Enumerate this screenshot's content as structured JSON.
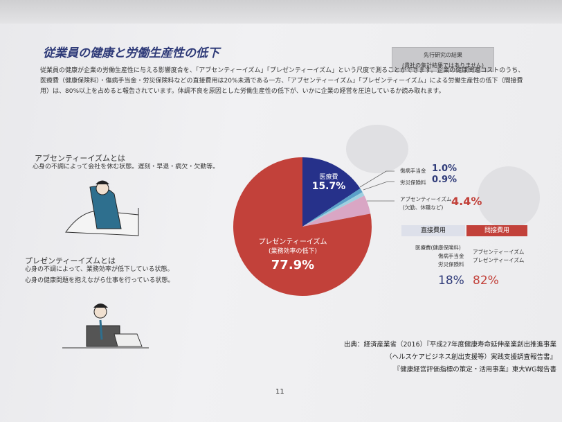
{
  "page_title": "従業員の健康と労働生産性の低下",
  "note": {
    "line1": "先行研究の結果",
    "line2": "(貴社の集計結果ではありません)"
  },
  "intro": "従業員の健康が企業の労働生産性に与える影響度合を、「アブセンティーイズム」「プレゼンティーイズム」という尺度で測ることができます。企業の健康関連コストのうち、医療費（健康保険料）・傷病手当金・労災保険料などの直接費用は20%未満である一方、「アブセンティーイズム」「プレゼンティーイズム」による労働生産性の低下（間接費用）は、80%以上を占めると報告されています。体調不良を原因とした労働生産性の低下が、いかに企業の経営を圧迫しているか読み取れます。",
  "absenteeism": {
    "heading": "アブセンティーイズムとは",
    "desc": "心身の不調によって会社を休む状態。遅刻・早退・病欠・欠勤等。"
  },
  "presenteeism": {
    "heading": "プレゼンティーイズムとは",
    "desc1": "心身の不調によって、業務効率が低下している状態。",
    "desc2": "心身の健康問題を抱えながら仕事を行っている状態。"
  },
  "chart_data": {
    "type": "pie",
    "slices": [
      {
        "label": "医療費",
        "value": 15.7,
        "display": "15.7%",
        "color": "#26318a"
      },
      {
        "label": "傷病手当金",
        "value": 1.0,
        "display": "1.0%",
        "color": "#5aa0c8"
      },
      {
        "label": "労災保険料",
        "value": 0.9,
        "display": "0.9%",
        "color": "#9fd0e0"
      },
      {
        "label": "アブセンティーイズム",
        "sublabel": "(欠勤、休職など)",
        "value": 4.4,
        "display": "4.4%",
        "color": "#d9a6c4"
      },
      {
        "label": "プレゼンティーイズム",
        "sublabel": "(業務効率の低下)",
        "value": 77.9,
        "display": "77.9%",
        "color": "#c2413a"
      }
    ]
  },
  "summary": {
    "direct": {
      "header": "直接費用",
      "items": [
        "医療費(健康保険料)",
        "傷病手当金",
        "労災保険料"
      ],
      "percent": "18%"
    },
    "indirect": {
      "header": "間接費用",
      "items": [
        "アブセンティーイズム",
        "プレゼンティーイズム"
      ],
      "percent": "82%"
    }
  },
  "citation": {
    "line1": "出典：経済産業省（2016）『平成27年度健康寿命延伸産業創出推進事業",
    "line2": "（ヘルスケアビジネス創出支援等）実践支援調査報告書』",
    "line3": "『健康経営評価指標の策定・活用事業』東大WG報告書"
  },
  "page_number": "11"
}
